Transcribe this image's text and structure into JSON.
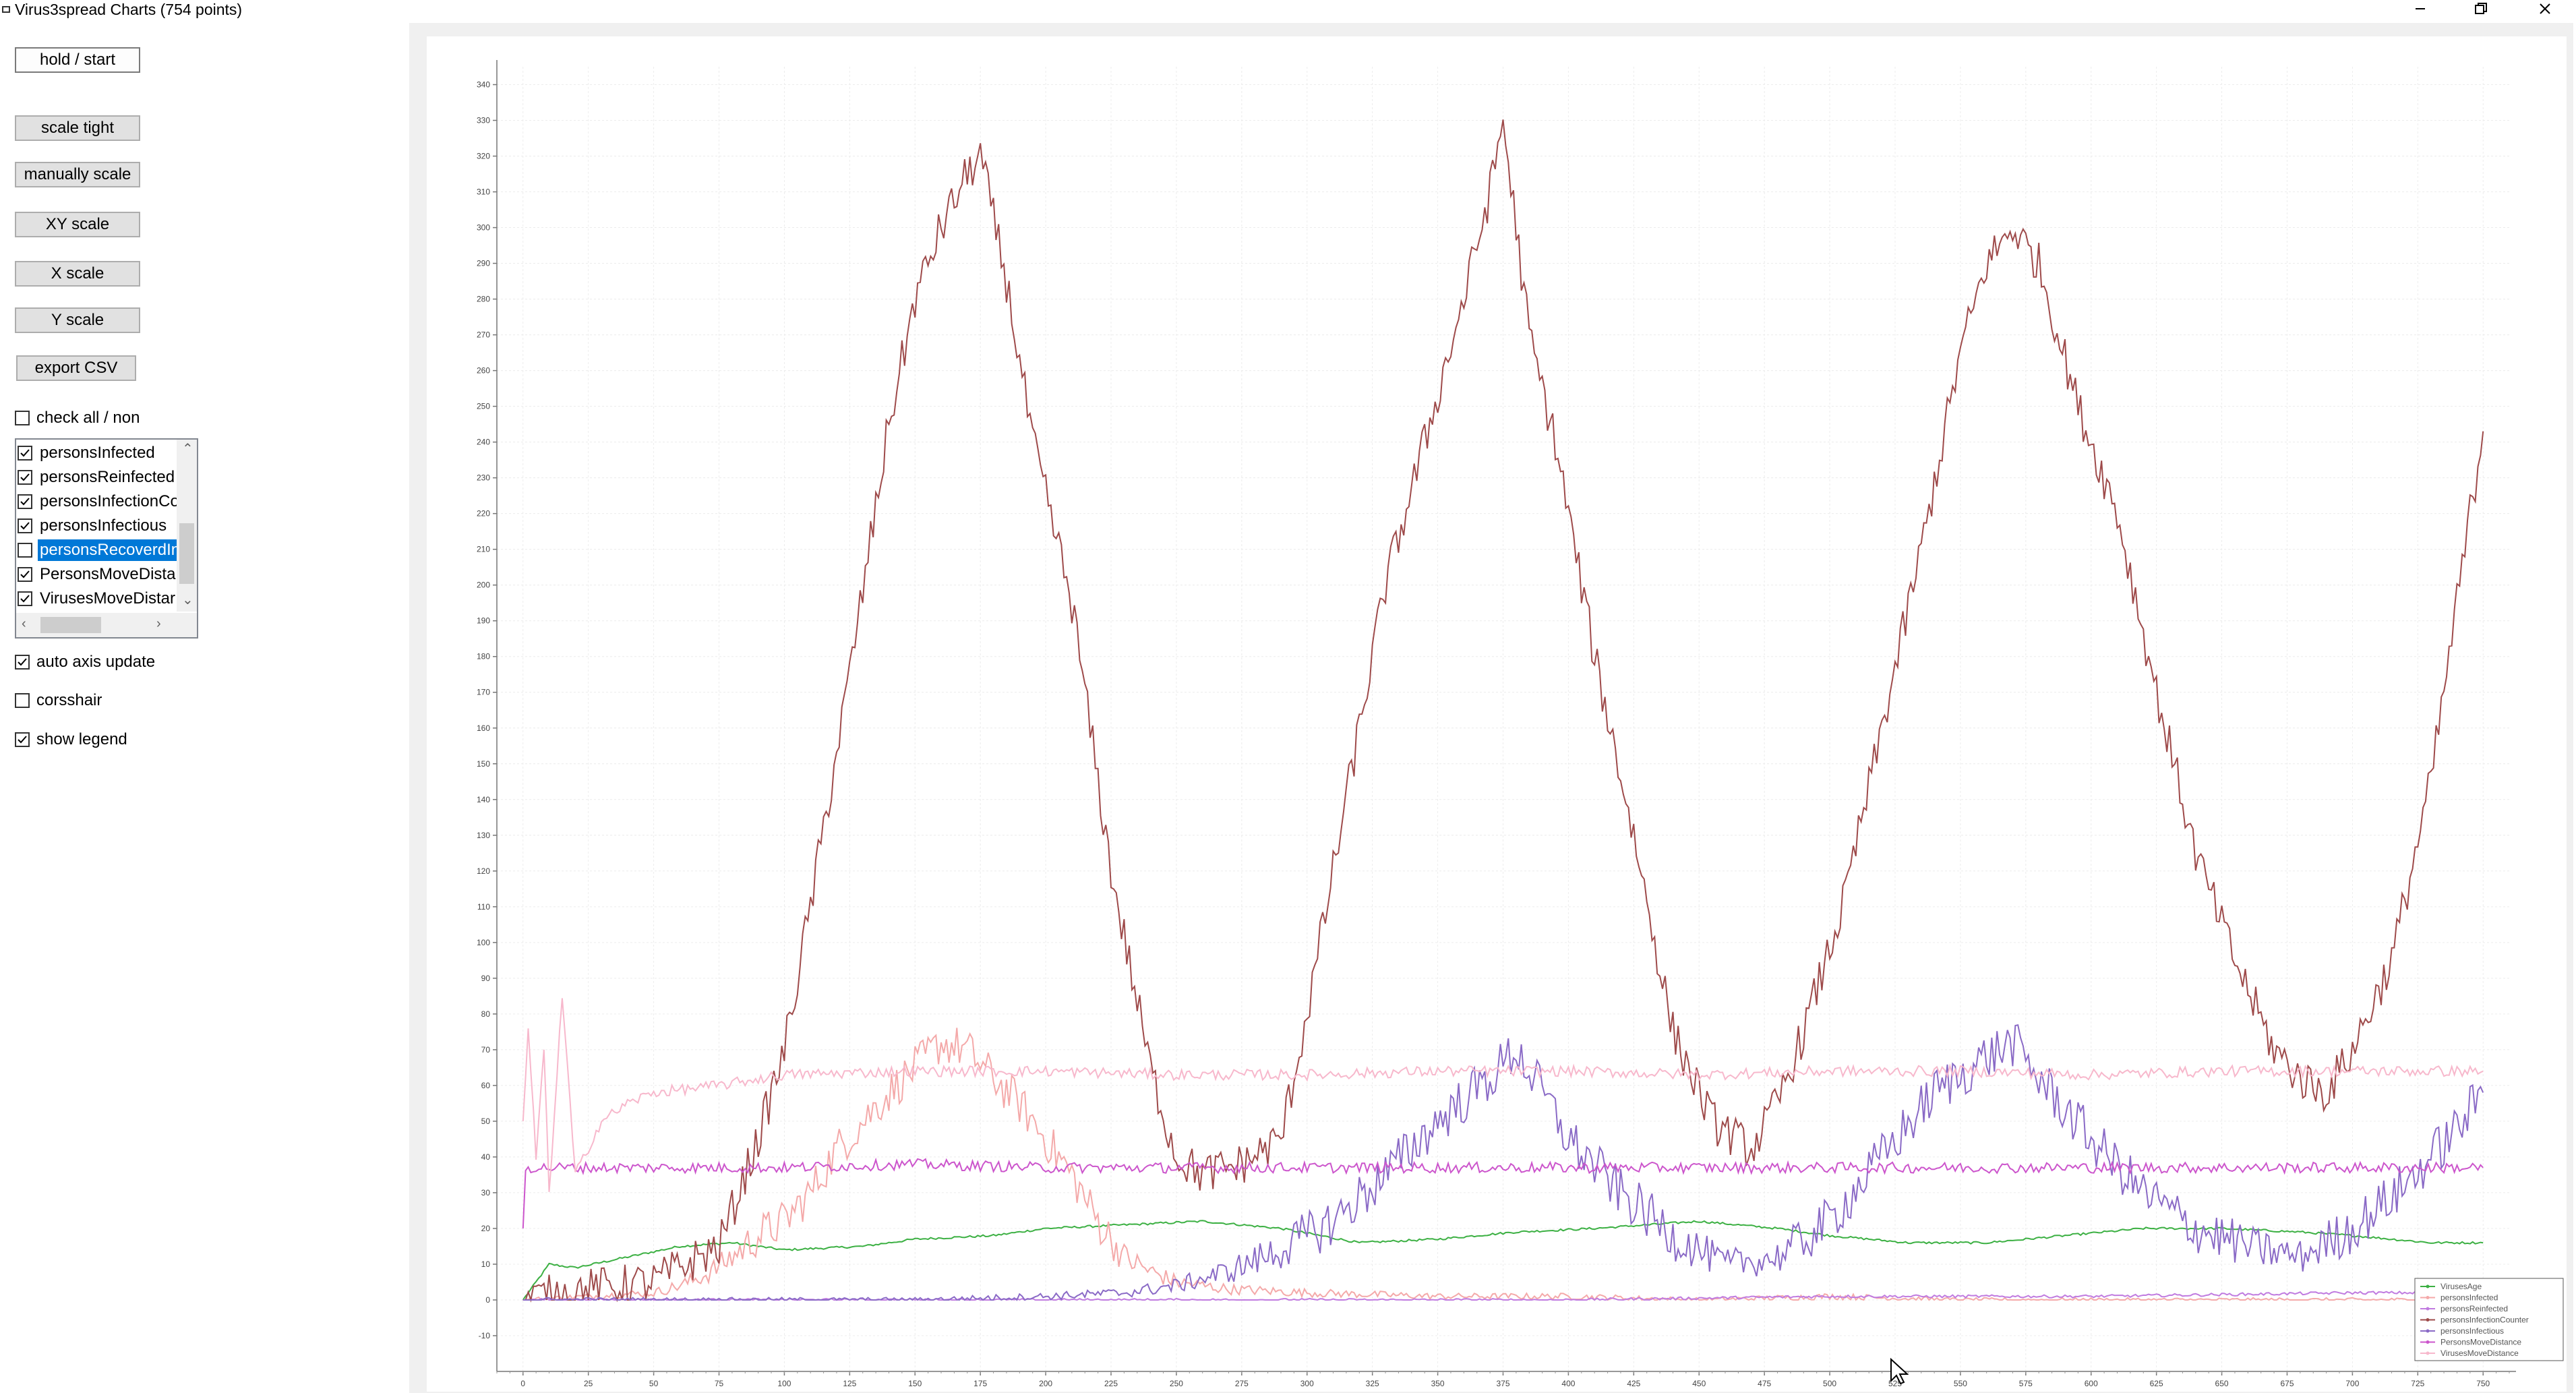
{
  "window": {
    "title": "Virus3spread Charts (754 points)",
    "controls": [
      "minimize",
      "restore",
      "close"
    ]
  },
  "controls": {
    "hold_start": "hold / start",
    "scale_tight": "scale tight",
    "manually_scale": "manually scale",
    "xy_scale": "XY scale",
    "x_scale": "X scale",
    "y_scale": "Y scale",
    "export_csv": "export CSV",
    "check_all": {
      "label": "check all / non",
      "checked": false
    },
    "auto_axis_update": {
      "label": "auto axis update",
      "checked": true
    },
    "crosshair": {
      "label": "corsshair",
      "checked": false
    },
    "show_legend": {
      "label": "show legend",
      "checked": true
    }
  },
  "series_list": [
    {
      "label": "personsInfected",
      "checked": true,
      "selected": false
    },
    {
      "label": "personsReinfected",
      "checked": true,
      "selected": false
    },
    {
      "label": "personsInfectionCo",
      "checked": true,
      "selected": false
    },
    {
      "label": "personsInfectious",
      "checked": true,
      "selected": false
    },
    {
      "label": "personsRecoverdIn",
      "checked": false,
      "selected": true
    },
    {
      "label": "PersonsMoveDistar",
      "checked": true,
      "selected": false
    },
    {
      "label": "VirusesMoveDistar",
      "checked": true,
      "selected": false
    }
  ],
  "colors": {
    "selection": "#0078d7",
    "VirusesAge": "#3cb043",
    "personsInfected": "#f4a9a9",
    "personsReinfected": "#c07be0",
    "personsInfectionCounter": "#9e4a4a",
    "personsInfectious": "#8a6ac6",
    "PersonsMoveDistance": "#cc55cc",
    "VirusesMoveDistance": "#f7b8cc"
  },
  "chart_data": {
    "type": "line",
    "title": "",
    "xlabel": "",
    "ylabel": "",
    "xlim": [
      -10,
      760
    ],
    "ylim": [
      -20,
      345
    ],
    "x_ticks": [
      0,
      25,
      50,
      75,
      100,
      125,
      150,
      175,
      200,
      225,
      250,
      275,
      300,
      325,
      350,
      375,
      400,
      425,
      450,
      475,
      500,
      525,
      550,
      575,
      600,
      625,
      650,
      675,
      700,
      725,
      750
    ],
    "y_ticks": [
      -10,
      0,
      10,
      20,
      30,
      40,
      50,
      60,
      70,
      80,
      90,
      100,
      110,
      120,
      130,
      140,
      150,
      160,
      170,
      180,
      190,
      200,
      210,
      220,
      230,
      240,
      250,
      260,
      270,
      280,
      290,
      300,
      310,
      320,
      330,
      340
    ],
    "grid": true,
    "legend_position": "bottom-right",
    "series": [
      {
        "name": "VirusesAge",
        "x": [
          0,
          10,
          20,
          40,
          60,
          80,
          100,
          130,
          150,
          180,
          200,
          230,
          260,
          290,
          320,
          350,
          380,
          410,
          450,
          480,
          500,
          530,
          560,
          590,
          620,
          650,
          680,
          700,
          730,
          750
        ],
        "values": [
          0,
          10,
          9,
          12,
          15,
          16,
          14,
          15,
          17,
          18,
          20,
          21,
          22,
          20,
          16,
          17,
          19,
          20,
          22,
          20,
          18,
          16,
          16,
          18,
          20,
          20,
          19,
          18,
          16,
          16
        ]
      },
      {
        "name": "personsInfected",
        "x": [
          0,
          25,
          50,
          60,
          70,
          80,
          90,
          100,
          110,
          120,
          130,
          140,
          150,
          160,
          170,
          180,
          190,
          200,
          210,
          220,
          230,
          240,
          250,
          270,
          300,
          350,
          400,
          450,
          500,
          550,
          600,
          650,
          700,
          750
        ],
        "values": [
          0,
          1,
          2,
          4,
          7,
          12,
          18,
          22,
          30,
          42,
          50,
          58,
          65,
          72,
          70,
          62,
          55,
          45,
          35,
          22,
          12,
          8,
          5,
          3,
          2,
          1,
          1,
          0,
          1,
          0,
          0,
          0,
          0,
          0
        ]
      },
      {
        "name": "personsReinfected",
        "x": [
          0,
          100,
          200,
          300,
          400,
          500,
          600,
          700,
          750
        ],
        "values": [
          0,
          0,
          0,
          0,
          0,
          1,
          1,
          2,
          2
        ]
      },
      {
        "name": "personsInfectionCounter",
        "x": [
          0,
          25,
          50,
          75,
          90,
          100,
          110,
          125,
          140,
          150,
          160,
          170,
          175,
          185,
          195,
          210,
          225,
          240,
          250,
          260,
          275,
          290,
          300,
          315,
          330,
          345,
          360,
          370,
          375,
          385,
          395,
          410,
          425,
          440,
          455,
          470,
          480,
          490,
          505,
          520,
          535,
          550,
          560,
          570,
          580,
          595,
          610,
          625,
          640,
          655,
          670,
          680,
          690,
          700,
          715,
          730,
          745,
          750
        ],
        "values": [
          0,
          3,
          5,
          15,
          45,
          70,
          110,
          175,
          245,
          280,
          300,
          315,
          320,
          285,
          240,
          195,
          120,
          65,
          40,
          35,
          38,
          45,
          80,
          140,
          200,
          240,
          280,
          310,
          330,
          270,
          240,
          180,
          130,
          75,
          50,
          42,
          55,
          75,
          110,
          160,
          210,
          265,
          290,
          300,
          290,
          250,
          220,
          170,
          125,
          95,
          70,
          62,
          58,
          70,
          95,
          145,
          220,
          243
        ]
      },
      {
        "name": "personsInfectious",
        "x": [
          0,
          50,
          100,
          150,
          200,
          230,
          250,
          270,
          290,
          310,
          330,
          350,
          370,
          380,
          390,
          400,
          420,
          440,
          460,
          480,
          500,
          520,
          540,
          560,
          570,
          580,
          600,
          620,
          640,
          660,
          680,
          700,
          720,
          740,
          750
        ],
        "values": [
          0,
          0,
          0,
          0,
          1,
          2,
          4,
          8,
          14,
          22,
          35,
          50,
          62,
          70,
          58,
          45,
          30,
          18,
          10,
          12,
          22,
          40,
          58,
          68,
          72,
          62,
          45,
          30,
          20,
          15,
          12,
          20,
          32,
          48,
          58
        ]
      },
      {
        "name": "PersonsMoveDistance",
        "x": [
          0,
          1,
          10,
          50,
          100,
          150,
          200,
          250,
          300,
          350,
          400,
          450,
          500,
          550,
          600,
          650,
          700,
          750
        ],
        "values": [
          20,
          37,
          37,
          37,
          37,
          38,
          37,
          37,
          37,
          37,
          37,
          37,
          37,
          37,
          37,
          37,
          37,
          37
        ]
      },
      {
        "name": "VirusesMoveDistance",
        "x": [
          0,
          2,
          5,
          8,
          10,
          15,
          20,
          30,
          40,
          50,
          75,
          100,
          150,
          200,
          250,
          300,
          350,
          400,
          450,
          500,
          550,
          600,
          650,
          700,
          750
        ],
        "values": [
          50,
          75,
          40,
          70,
          30,
          85,
          35,
          50,
          55,
          58,
          60,
          63,
          64,
          64,
          63,
          63,
          64,
          64,
          63,
          64,
          64,
          63,
          64,
          64,
          64
        ]
      }
    ]
  }
}
